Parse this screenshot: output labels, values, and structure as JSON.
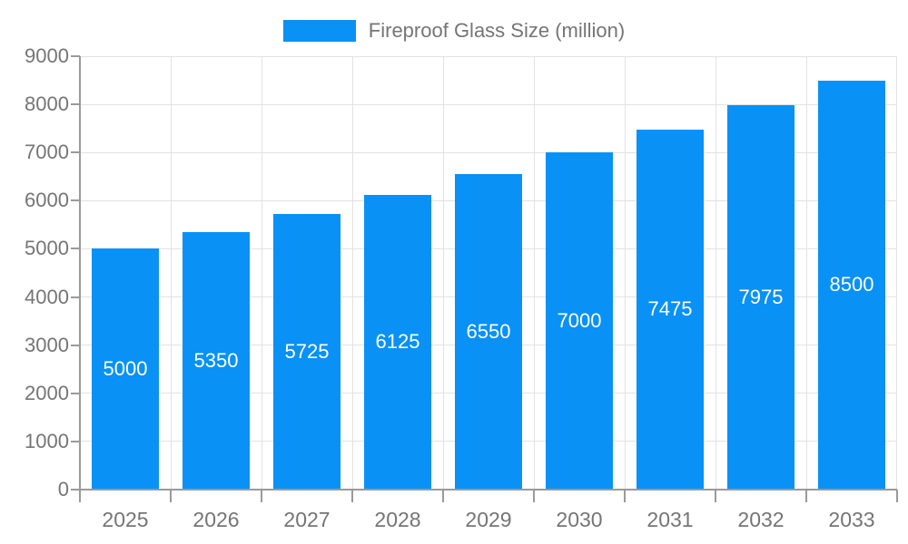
{
  "legend": {
    "label": "Fireproof Glass Size (million)"
  },
  "colors": {
    "bar": "#0991f5",
    "grid": "#e2e2e2",
    "axis": "#9a9a9a",
    "text": "#757575",
    "bar_label": "#ffffff",
    "background": "#ffffff"
  },
  "chart_data": {
    "type": "bar",
    "title": "Fireproof Glass Size (million)",
    "categories": [
      "2025",
      "2026",
      "2027",
      "2028",
      "2029",
      "2030",
      "2031",
      "2032",
      "2033"
    ],
    "values": [
      5000,
      5350,
      5725,
      6125,
      6550,
      7000,
      7475,
      7975,
      8500
    ],
    "xlabel": "",
    "ylabel": "",
    "ylim": [
      0,
      9000
    ],
    "yticks": [
      0,
      1000,
      2000,
      3000,
      4000,
      5000,
      6000,
      7000,
      8000,
      9000
    ],
    "grid": true,
    "legend_position": "top-center",
    "value_labels": "white, centered inside bars"
  }
}
